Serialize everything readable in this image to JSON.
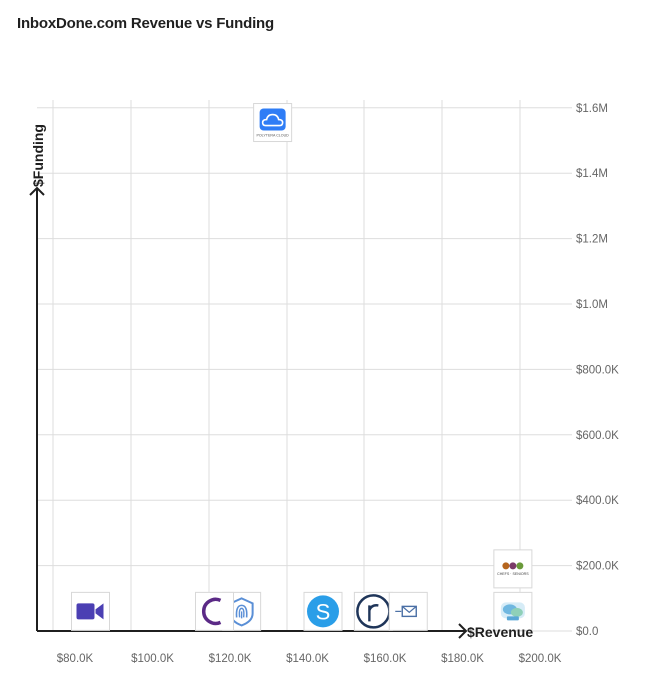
{
  "title": "InboxDone.com Revenue vs Funding",
  "chart_data": {
    "type": "scatter",
    "title": "InboxDone.com Revenue vs Funding",
    "xlabel": "$Revenue",
    "ylabel": "$Funding",
    "xlim": [
      75000,
      205000
    ],
    "ylim": [
      0,
      1600000
    ],
    "x_ticks": [
      {
        "value": 80000,
        "label": "$80.0K"
      },
      {
        "value": 100000,
        "label": "$100.0K"
      },
      {
        "value": 120000,
        "label": "$120.0K"
      },
      {
        "value": 140000,
        "label": "$140.0K"
      },
      {
        "value": 160000,
        "label": "$160.0K"
      },
      {
        "value": 180000,
        "label": "$180.0K"
      },
      {
        "value": 200000,
        "label": "$200.0K"
      }
    ],
    "y_ticks": [
      {
        "value": 0,
        "label": "$0.0"
      },
      {
        "value": 200000,
        "label": "$200.0K"
      },
      {
        "value": 400000,
        "label": "$400.0K"
      },
      {
        "value": 600000,
        "label": "$600.0K"
      },
      {
        "value": 800000,
        "label": "$800.0K"
      },
      {
        "value": 1000000,
        "label": "$1.0M"
      },
      {
        "value": 1200000,
        "label": "$1.2M"
      },
      {
        "value": 1400000,
        "label": "$1.4M"
      },
      {
        "value": 1600000,
        "label": "$1.6M"
      }
    ],
    "grid": true,
    "points": [
      {
        "x": 84000,
        "y": 60000,
        "icon": "video-camera-icon",
        "color": "#4b3fb3"
      },
      {
        "x": 123000,
        "y": 60000,
        "icon": "fingerprint-shield-icon",
        "color": "#5a8fd6"
      },
      {
        "x": 116000,
        "y": 60000,
        "icon": "crescent-c-icon",
        "color": "#5b2a86"
      },
      {
        "x": 131000,
        "y": 1555000,
        "icon": "cloud-app-icon",
        "color": "#2f7df6",
        "logo_text": "POLYTERA CLOUD"
      },
      {
        "x": 144000,
        "y": 60000,
        "icon": "s-circle-icon",
        "color": "#2a9ee8"
      },
      {
        "x": 157000,
        "y": 60000,
        "icon": "r-circle-icon",
        "color": "#1f3559"
      },
      {
        "x": 166000,
        "y": 60000,
        "icon": "envelope-icon",
        "color": "#4a6fa5"
      },
      {
        "x": 193000,
        "y": 190000,
        "icon": "chefs-logo-icon",
        "color": "#b5651d",
        "logo_text": "CHEFS · SENIORS"
      },
      {
        "x": 193000,
        "y": 60000,
        "icon": "chat-bubbles-icon",
        "color": "#6fb7e0"
      }
    ]
  }
}
